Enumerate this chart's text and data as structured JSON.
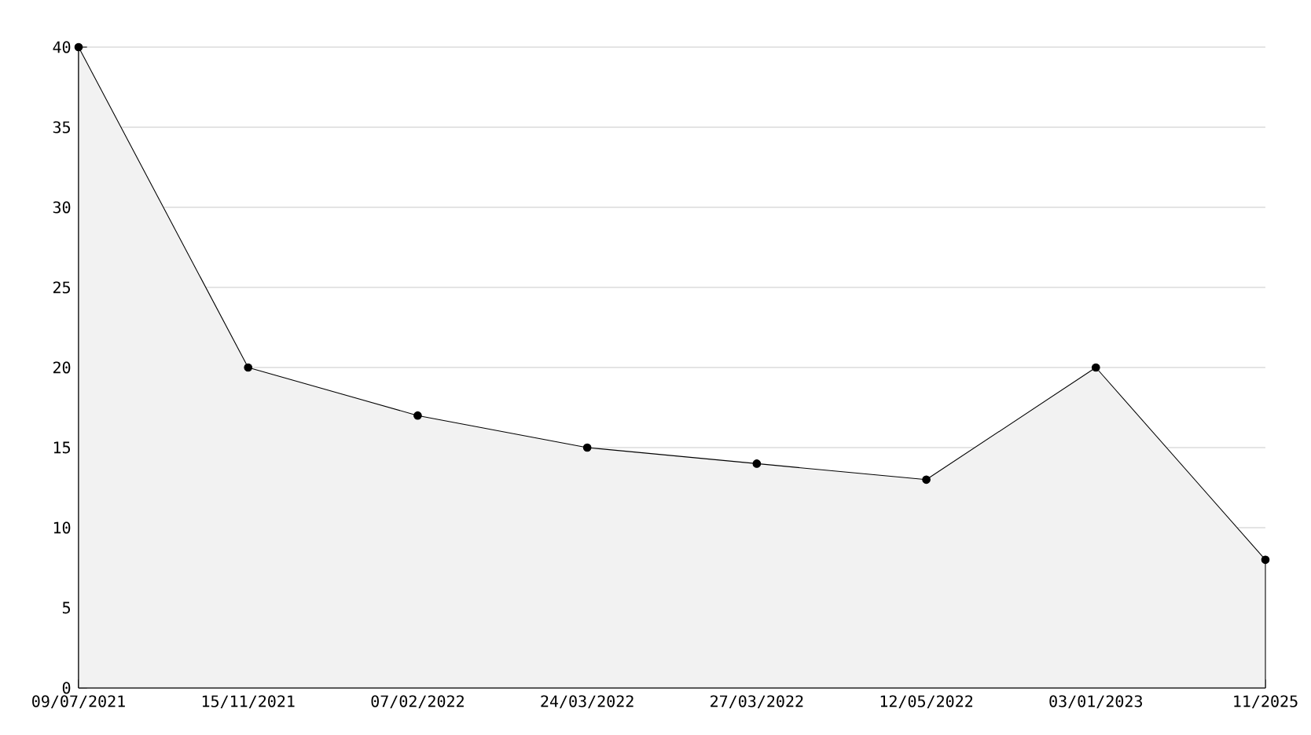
{
  "chart_data": {
    "type": "area",
    "categories": [
      "09/07/2021",
      "15/11/2021",
      "07/02/2022",
      "24/03/2022",
      "27/03/2022",
      "12/05/2022",
      "03/01/2023",
      "11/2025"
    ],
    "values": [
      40,
      20,
      17,
      15,
      14,
      13,
      20,
      8
    ],
    "color": "#f2f2f2",
    "ylim": [
      0,
      40
    ],
    "yticks": [
      0,
      5,
      10,
      15,
      20,
      25,
      30,
      35,
      40
    ],
    "grid": "y",
    "marker": "circle",
    "line_style": "solid"
  }
}
